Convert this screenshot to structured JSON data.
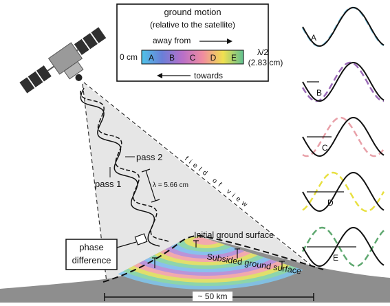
{
  "legend": {
    "title": "ground motion",
    "subtitle": "(relative to the satellite)",
    "away_label": "away from",
    "towards_label": "towards",
    "zero_label": "0 cm",
    "half_wavelength_label": "λ/2",
    "half_wavelength_value": "(2.83 cm)",
    "fringe_letters": [
      "A",
      "B",
      "C",
      "D",
      "E"
    ]
  },
  "labels": {
    "pass1": "pass 1",
    "pass2": "pass 2",
    "wavelength": "λ = 5.66 cm",
    "field_of_view": "field of view",
    "phase_difference_line1": "phase",
    "phase_difference_line2": "difference",
    "initial_surface": "Initial ground surface",
    "subsided_surface": "Subsided ground surface",
    "scale": "~ 50 km"
  },
  "wave_panels": [
    {
      "letter": "A",
      "color": "#7ec8e3"
    },
    {
      "letter": "B",
      "color": "#9b6ab8"
    },
    {
      "letter": "C",
      "color": "#e8a0a8"
    },
    {
      "letter": "D",
      "color": "#e8e040"
    },
    {
      "letter": "E",
      "color": "#5fa870"
    }
  ],
  "colors": {
    "ground": "#8e8e8e",
    "fov": "#e6e6e6",
    "satellite_body": "#9a9a9a",
    "solar_panel": "#2f2f2f"
  }
}
